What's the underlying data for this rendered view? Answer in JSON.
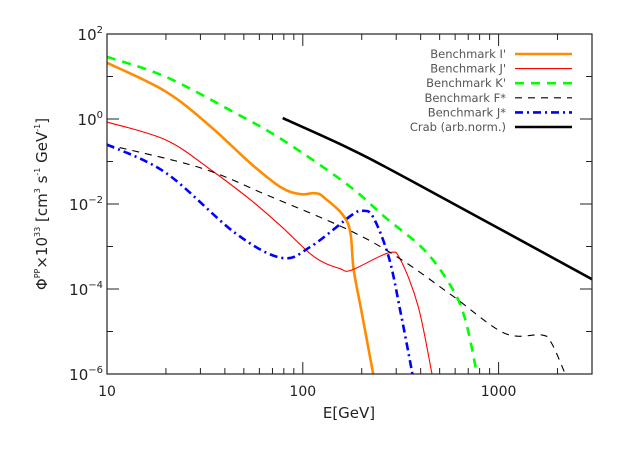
{
  "chart_data": {
    "type": "line",
    "title": "",
    "xlabel": "E[GeV]",
    "ylabel": {
      "symbol": "Φ",
      "sup": "PP",
      "mult": "×10",
      "exp": "33",
      "units": "[cm",
      "u1": "3",
      "s": " s",
      "u2": "-1",
      "gev": " GeV",
      "u3": "-1",
      "close": "]"
    },
    "x_scale": "log",
    "y_scale": "log",
    "xlim": [
      10,
      3000
    ],
    "ylim": [
      1e-06,
      100
    ],
    "grid": false,
    "legend_placement": "top-right",
    "x_ticks": [
      {
        "v": 10,
        "label": "10"
      },
      {
        "v": 100,
        "label": "100"
      },
      {
        "v": 1000,
        "label": "1000"
      }
    ],
    "y_ticks": [
      {
        "v": 100,
        "base": "10",
        "exp": "2"
      },
      {
        "v": 1,
        "base": "10",
        "exp": "0"
      },
      {
        "v": 0.01,
        "base": "10",
        "exp": "−2"
      },
      {
        "v": 0.0001,
        "base": "10",
        "exp": "−4"
      },
      {
        "v": 1e-06,
        "base": "10",
        "exp": "−6"
      }
    ],
    "series": [
      {
        "name": "Benchmark I'",
        "color": "#ff8c00",
        "style": "solid-thick",
        "x": [
          10,
          20,
          34,
          54,
          78,
          98,
          115,
          129,
          170,
          182,
          200,
          229
        ],
        "y": [
          21,
          4.4,
          0.65,
          0.091,
          0.024,
          0.017,
          0.018,
          0.014,
          0.0035,
          0.00028,
          2.8e-05,
          1e-06
        ]
      },
      {
        "name": "Benchmark J'",
        "color": "#ff0000",
        "style": "solid-thin",
        "x": [
          10,
          20,
          34,
          54,
          78,
          115,
          155,
          178,
          275,
          316,
          389,
          457
        ],
        "y": [
          0.85,
          0.32,
          0.063,
          0.0126,
          0.0029,
          0.00056,
          0.0003,
          0.00028,
          0.00071,
          0.00048,
          3.8e-05,
          1e-06
        ]
      },
      {
        "name": "Benchmark K'",
        "color": "#00ff00",
        "style": "dashed-thick",
        "x": [
          10,
          20,
          45,
          79,
          170,
          263,
          417,
          575,
          676,
          776
        ],
        "y": [
          29,
          9.8,
          1.4,
          0.32,
          0.028,
          0.0049,
          0.00083,
          0.00011,
          1.9e-05,
          1e-06
        ]
      },
      {
        "name": "Benchmark F*",
        "color": "#000000",
        "style": "dashed-thin",
        "x": [
          10,
          30,
          66,
          170,
          309,
          575,
          1072,
          1660,
          1862,
          2188
        ],
        "y": [
          0.25,
          0.071,
          0.016,
          0.0025,
          0.00054,
          7.2e-05,
          9.1e-06,
          8.3e-06,
          5.4e-06,
          1e-06
        ]
      },
      {
        "name": "Benchmark J*",
        "color": "#0000ff",
        "style": "dashdot-thick",
        "x": [
          10,
          20,
          45,
          78,
          110,
          178,
          204,
          229,
          275,
          316,
          363
        ],
        "y": [
          0.25,
          0.054,
          0.0021,
          0.00054,
          0.001,
          0.0055,
          0.0069,
          0.0049,
          0.00056,
          2.8e-05,
          1e-06
        ]
      },
      {
        "name": "Crab (arb.norm.)",
        "color": "#000000",
        "style": "solid-thick",
        "x": [
          79,
          170,
          355,
          3000
        ],
        "y": [
          1.05,
          0.21,
          0.036,
          0.00017
        ]
      }
    ]
  }
}
